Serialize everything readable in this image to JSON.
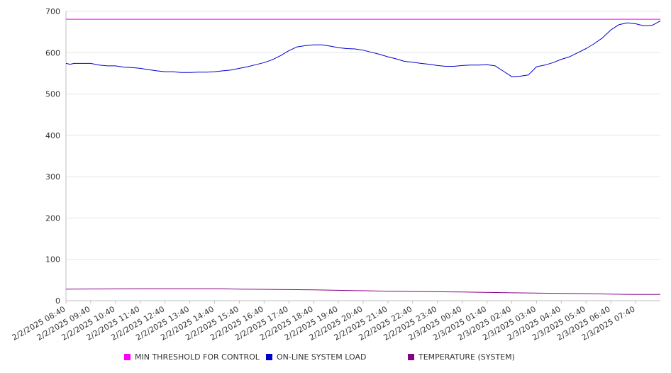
{
  "chart_data": {
    "type": "line",
    "ylim": [
      0,
      700
    ],
    "y_ticks": [
      "0",
      "100",
      "200",
      "300",
      "400",
      "500",
      "600",
      "700"
    ],
    "x_tick_labels": [
      "2/2/2025 08:40",
      "2/2/2025 09:40",
      "2/2/2025 10:40",
      "2/2/2025 11:40",
      "2/2/2025 12:40",
      "2/2/2025 13:40",
      "2/2/2025 14:40",
      "2/2/2025 15:40",
      "2/2/2025 16:40",
      "2/2/2025 17:40",
      "2/2/2025 18:40",
      "2/2/2025 19:40",
      "2/2/2025 20:40",
      "2/2/2025 21:40",
      "2/2/2025 22:40",
      "2/2/2025 23:40",
      "2/3/2025 00:40",
      "2/3/2025 01:40",
      "2/3/2025 02:40",
      "2/3/2025 03:40",
      "2/3/2025 04:40",
      "2/3/2025 05:40",
      "2/3/2025 06:40",
      "2/3/2025 07:40"
    ],
    "x_range": [
      "2/2/2025 08:40",
      "2/3/2025 08:40"
    ],
    "grid": "horizontal",
    "legend_position": "bottom",
    "series": [
      {
        "name": "MIN THRESHOLD FOR CONTROL",
        "color": "#ff00ff",
        "x": [
          "2/2/2025 08:40",
          "2/3/2025 08:40"
        ],
        "values": [
          681,
          681
        ]
      },
      {
        "name": "ON-LINE SYSTEM LOAD",
        "color": "#0000cc",
        "x": [
          "2/2/2025 08:40",
          "2/2/2025 08:50",
          "2/2/2025 09:00",
          "2/2/2025 09:20",
          "2/2/2025 09:40",
          "2/2/2025 10:00",
          "2/2/2025 10:20",
          "2/2/2025 10:40",
          "2/2/2025 11:00",
          "2/2/2025 11:20",
          "2/2/2025 11:40",
          "2/2/2025 12:00",
          "2/2/2025 12:20",
          "2/2/2025 12:40",
          "2/2/2025 13:00",
          "2/2/2025 13:20",
          "2/2/2025 13:40",
          "2/2/2025 14:00",
          "2/2/2025 14:20",
          "2/2/2025 14:40",
          "2/2/2025 15:00",
          "2/2/2025 15:20",
          "2/2/2025 15:40",
          "2/2/2025 16:00",
          "2/2/2025 16:20",
          "2/2/2025 16:40",
          "2/2/2025 17:00",
          "2/2/2025 17:20",
          "2/2/2025 17:40",
          "2/2/2025 18:00",
          "2/2/2025 18:20",
          "2/2/2025 18:40",
          "2/2/2025 19:00",
          "2/2/2025 19:20",
          "2/2/2025 19:40",
          "2/2/2025 20:00",
          "2/2/2025 20:20",
          "2/2/2025 20:40",
          "2/2/2025 21:00",
          "2/2/2025 21:20",
          "2/2/2025 21:40",
          "2/2/2025 22:00",
          "2/2/2025 22:20",
          "2/2/2025 22:40",
          "2/2/2025 23:00",
          "2/2/2025 23:20",
          "2/2/2025 23:40",
          "2/3/2025 00:00",
          "2/3/2025 00:20",
          "2/3/2025 00:40",
          "2/3/2025 01:00",
          "2/3/2025 01:20",
          "2/3/2025 01:40",
          "2/3/2025 02:00",
          "2/3/2025 02:20",
          "2/3/2025 02:40",
          "2/3/2025 03:00",
          "2/3/2025 03:20",
          "2/3/2025 03:40",
          "2/3/2025 04:00",
          "2/3/2025 04:20",
          "2/3/2025 04:40",
          "2/3/2025 05:00",
          "2/3/2025 05:20",
          "2/3/2025 05:40",
          "2/3/2025 06:00",
          "2/3/2025 06:20",
          "2/3/2025 06:40",
          "2/3/2025 07:00",
          "2/3/2025 07:20",
          "2/3/2025 07:40",
          "2/3/2025 08:00",
          "2/3/2025 08:20",
          "2/3/2025 08:40"
        ],
        "values": [
          574,
          572,
          574,
          574,
          574,
          570,
          568,
          568,
          565,
          564,
          562,
          559,
          556,
          554,
          554,
          552,
          552,
          553,
          553,
          554,
          556,
          558,
          562,
          566,
          571,
          576,
          583,
          593,
          605,
          614,
          617,
          619,
          619,
          616,
          612,
          610,
          609,
          606,
          601,
          596,
          590,
          585,
          579,
          577,
          574,
          572,
          569,
          567,
          567,
          569,
          570,
          570,
          571,
          568,
          555,
          542,
          543,
          546,
          566,
          570,
          576,
          584,
          590,
          600,
          610,
          622,
          636,
          655,
          668,
          672,
          670,
          665,
          666,
          677
        ]
      },
      {
        "name": "TEMPERATURE (SYSTEM)",
        "color": "#880088",
        "x": [
          "2/2/2025 08:40",
          "2/2/2025 11:40",
          "2/2/2025 15:00",
          "2/2/2025 15:40",
          "2/2/2025 18:40",
          "2/2/2025 21:40",
          "2/3/2025 00:40",
          "2/3/2025 02:40",
          "2/3/2025 05:40",
          "2/3/2025 07:40",
          "2/3/2025 08:40"
        ],
        "values": [
          28,
          29,
          29,
          28,
          26,
          23,
          21,
          19,
          17,
          15,
          15
        ]
      }
    ]
  }
}
